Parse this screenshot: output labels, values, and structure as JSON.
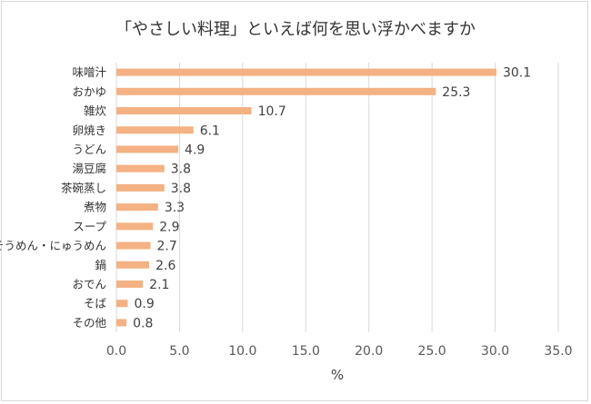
{
  "chart_data": {
    "type": "bar",
    "orientation": "horizontal",
    "title": "「やさしい料理」といえば何を思い浮かべますか",
    "xlabel": "%",
    "ylabel": "",
    "xlim": [
      0,
      35
    ],
    "x_ticks": [
      "0.0",
      "5.0",
      "10.0",
      "15.0",
      "20.0",
      "25.0",
      "30.0",
      "35.0"
    ],
    "grid": "vertical",
    "legend": "none",
    "bar_color": "#f4b183",
    "categories": [
      "味噌汁",
      "おかゆ",
      "雑炊",
      "卵焼き",
      "うどん",
      "湯豆腐",
      "茶碗蒸し",
      "煮物",
      "スープ",
      "そうめん・にゅうめん",
      "鍋",
      "おでん",
      "そば",
      "その他"
    ],
    "values": [
      30.1,
      25.3,
      10.7,
      6.1,
      4.9,
      3.8,
      3.8,
      3.3,
      2.9,
      2.7,
      2.6,
      2.1,
      0.9,
      0.8
    ],
    "value_labels": [
      "30.1",
      "25.3",
      "10.7",
      "6.1",
      "4.9",
      "3.8",
      "3.8",
      "3.3",
      "2.9",
      "2.7",
      "2.6",
      "2.1",
      "0.9",
      "0.8"
    ]
  }
}
